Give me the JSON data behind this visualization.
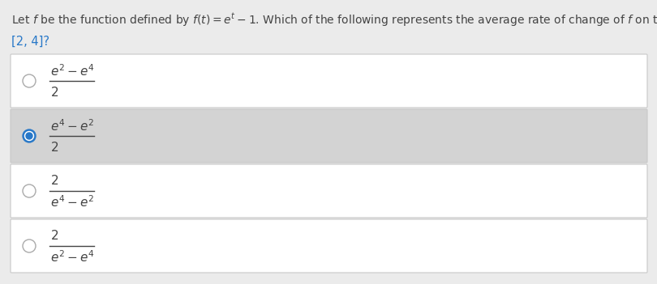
{
  "bg_color": "#ebebeb",
  "white": "#ffffff",
  "selected_bg": "#d3d3d3",
  "border_color": "#c8c8c8",
  "text_color": "#444444",
  "blue_color": "#2878c8",
  "question_line1": "Let $f$ be the function defined by $f(t) = e^t - 1$. Which of the following represents the average rate of change of $f$ on the interval",
  "question_line2": "[2, 4]?",
  "options": [
    {
      "selected": false,
      "numerator": "$e^2 - e^4$",
      "denominator": "$2$",
      "bg": "#ffffff"
    },
    {
      "selected": true,
      "numerator": "$e^4 - e^2$",
      "denominator": "$2$",
      "bg": "#d3d3d3"
    },
    {
      "selected": false,
      "numerator": "$2$",
      "denominator": "$e^4 - e^2$",
      "bg": "#ffffff"
    },
    {
      "selected": false,
      "numerator": "$2$",
      "denominator": "$e^2 - e^4$",
      "bg": "#ffffff"
    }
  ],
  "fig_width": 8.1,
  "fig_height": 3.51,
  "dpi": 100
}
